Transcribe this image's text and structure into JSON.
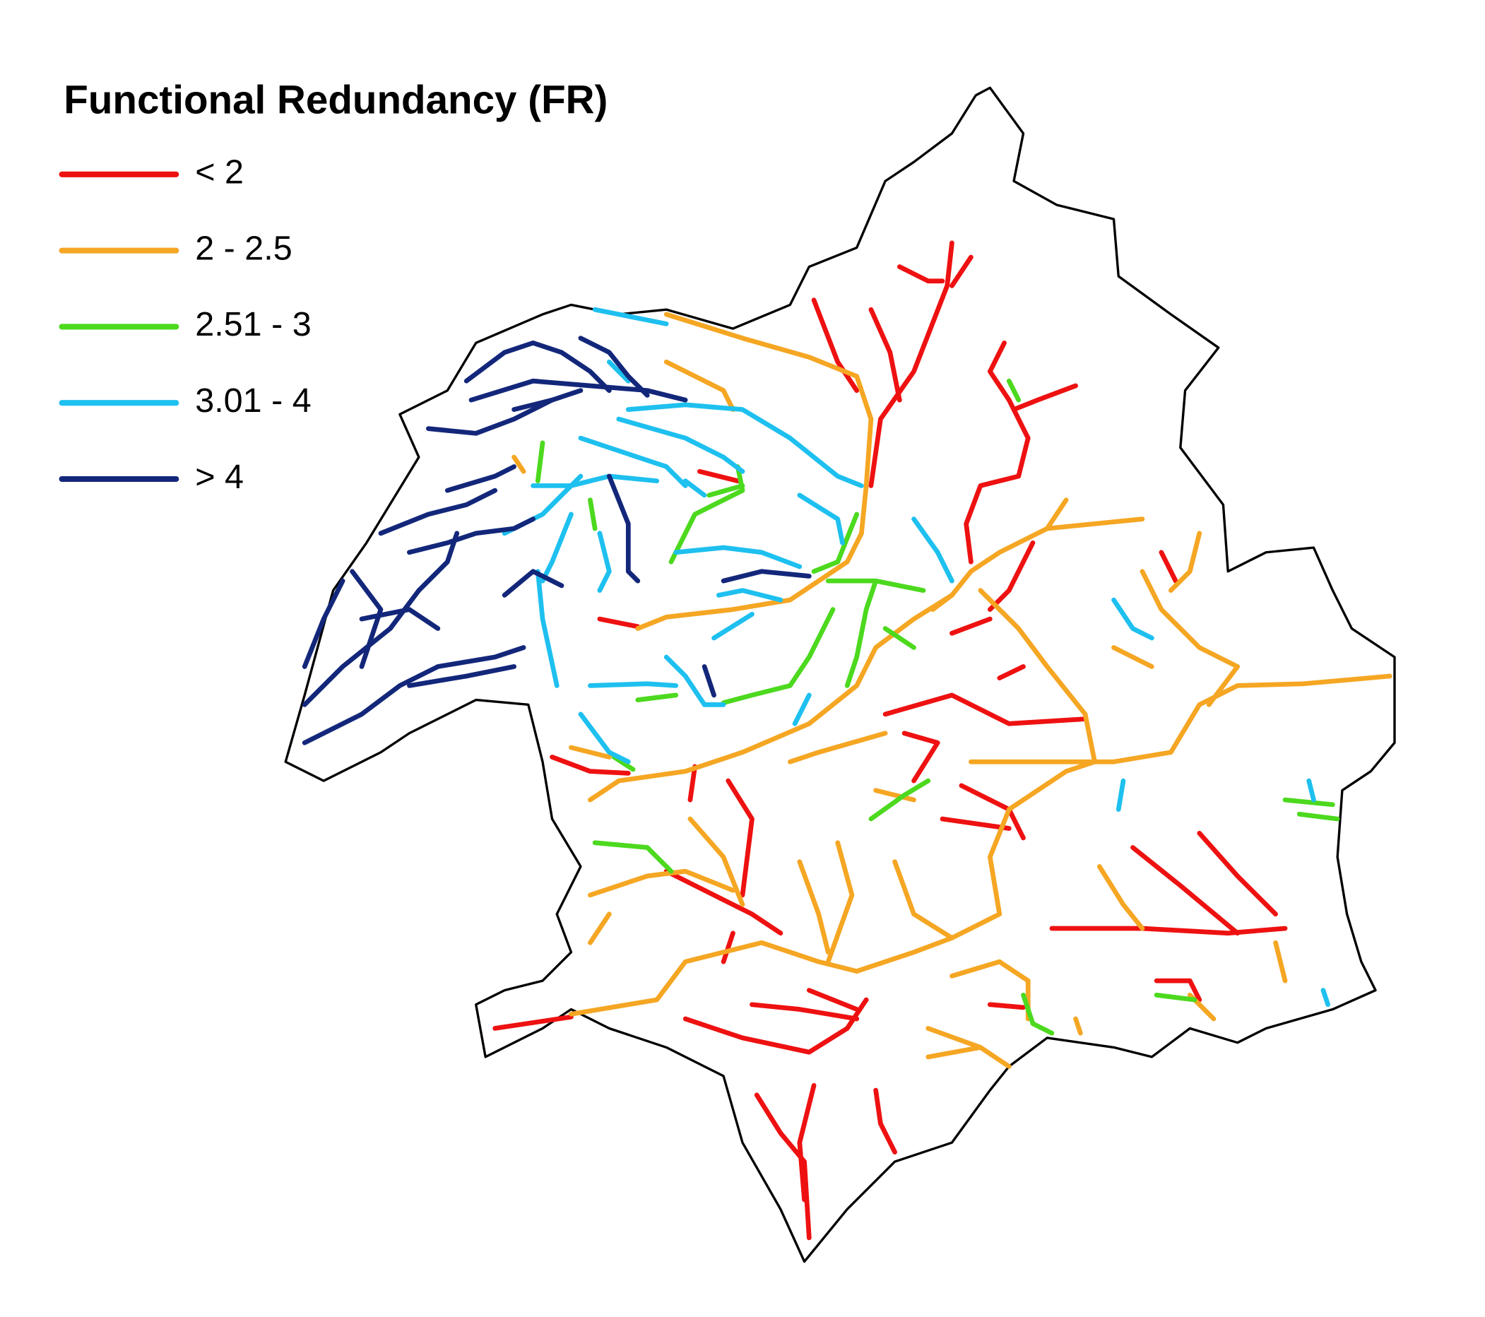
{
  "title": "Functional Redundancy (FR)",
  "legend": {
    "items": [
      {
        "label": "< 2",
        "color": "#ee1111"
      },
      {
        "label": "2 - 2.5",
        "color": "#f5a623"
      },
      {
        "label": "2.51 - 3",
        "color": "#4cd91e"
      },
      {
        "label": "3.01 - 4",
        "color": "#1ec0ef"
      },
      {
        "label": "> 4",
        "color": "#13277a"
      }
    ]
  }
}
